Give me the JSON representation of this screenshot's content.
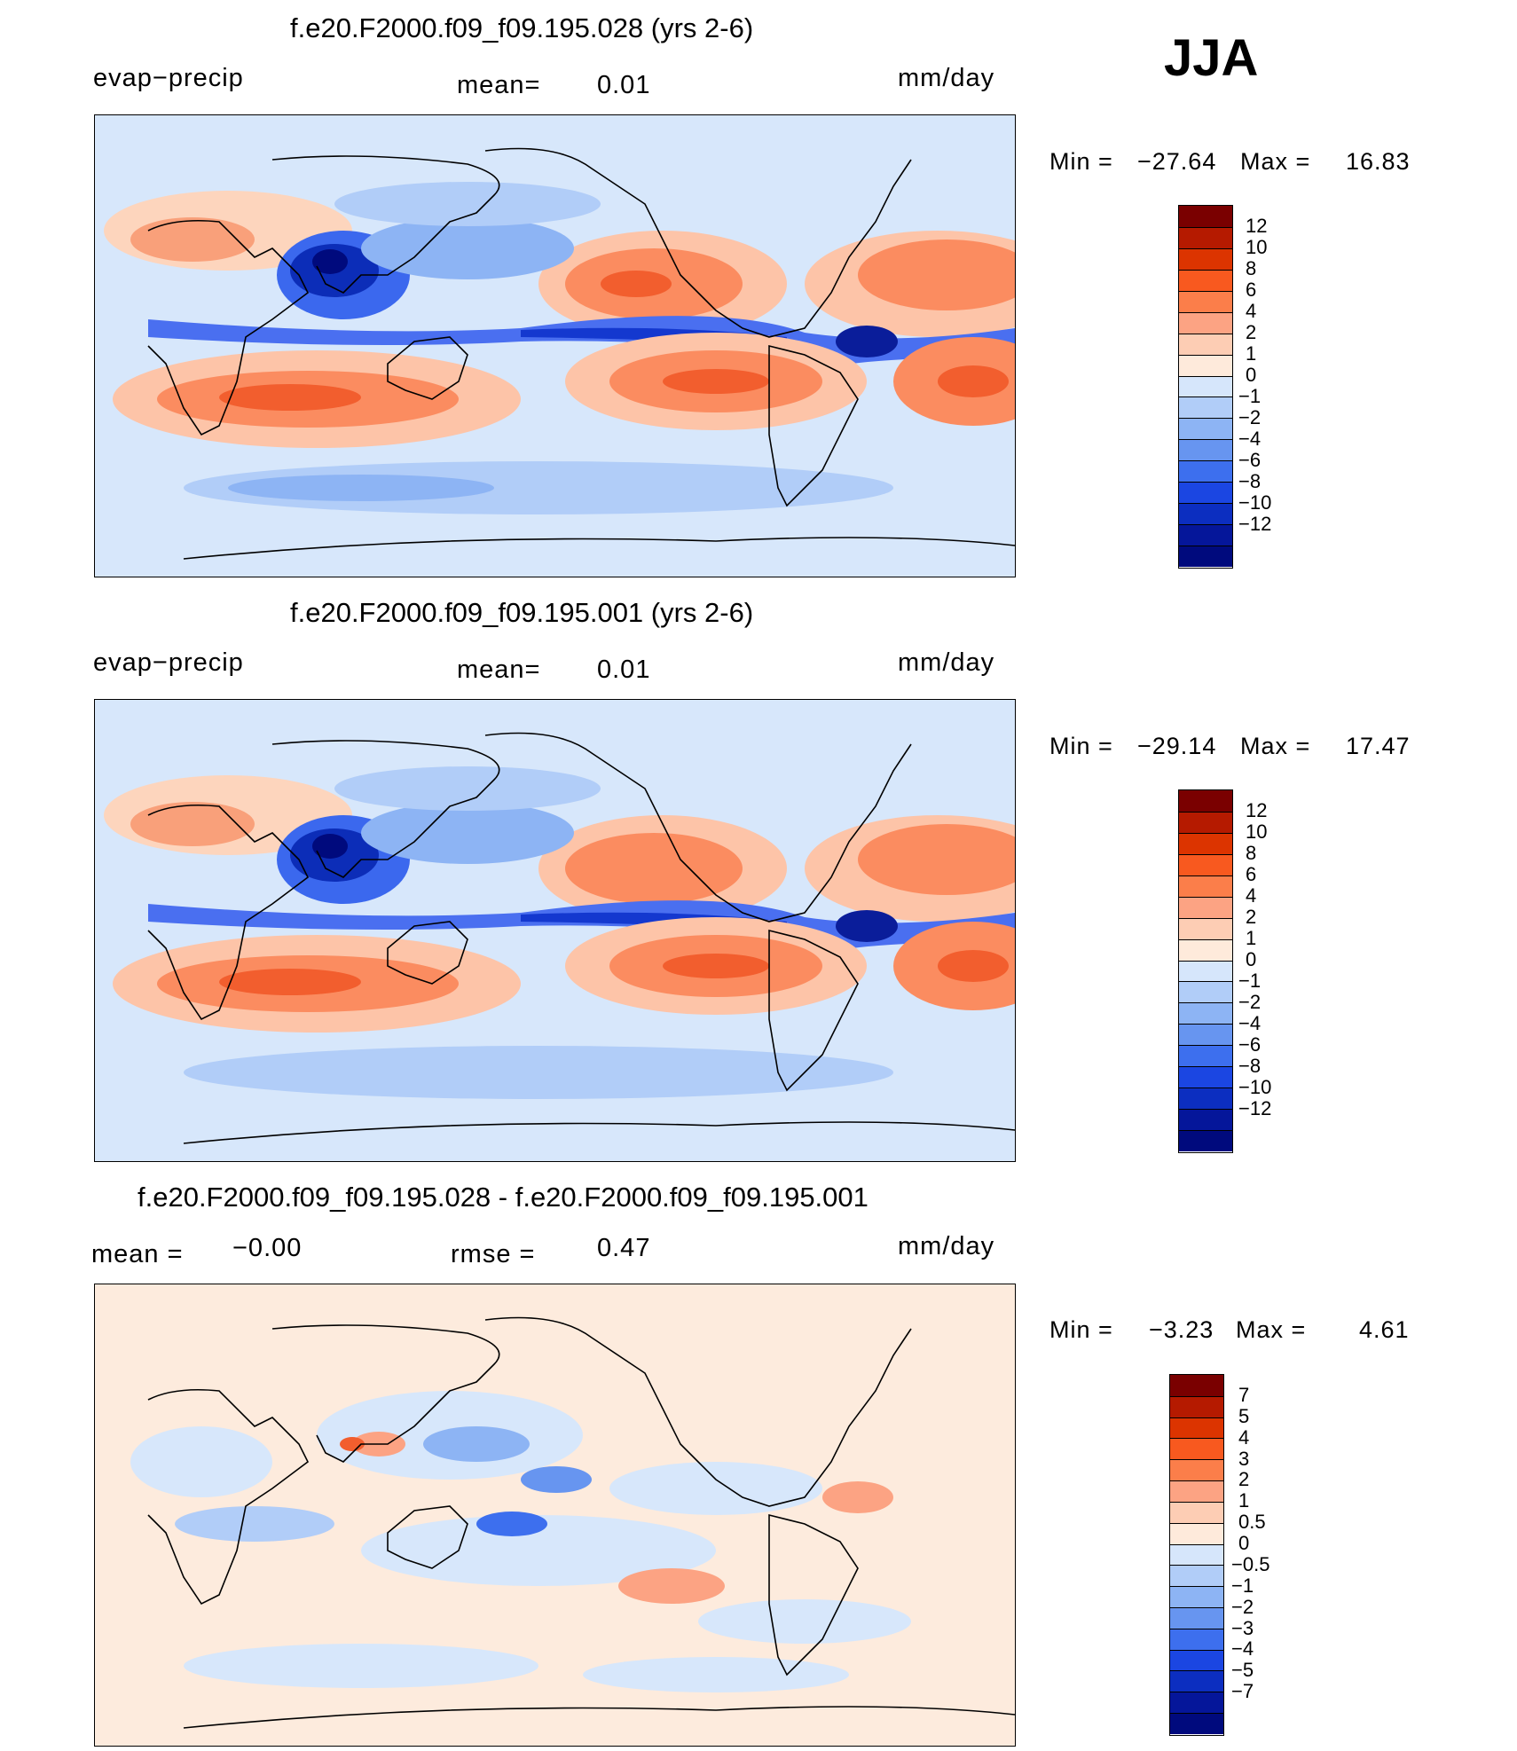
{
  "season": "JJA",
  "units": "mm/day",
  "panels": [
    {
      "id": "case1",
      "title": "f.e20.F2000.f09_f09.195.028 (yrs 2-6)",
      "left_text": "evap−precip",
      "center_label": "mean=",
      "center_value": "0.01",
      "right_text": "mm/day",
      "min_label": "Min =",
      "min_value": "−27.64",
      "max_label": "Max =",
      "max_value": "16.83",
      "colorbar": {
        "colors": [
          "#7a0000",
          "#b51a00",
          "#dc3400",
          "#f8591f",
          "#fb7e4a",
          "#fca383",
          "#fdcdb4",
          "#feeadb",
          "#d6e6fb",
          "#b1cdf8",
          "#8db4f4",
          "#6795f0",
          "#3d6fee",
          "#1b46e2",
          "#0c2ec0",
          "#05169a",
          "#000a7d"
        ],
        "labels": [
          "12",
          "10",
          "8",
          "6",
          "4",
          "2",
          "1",
          "0",
          "−1",
          "−2",
          "−4",
          "−6",
          "−8",
          "−10",
          "−12"
        ]
      }
    },
    {
      "id": "case2",
      "title": "f.e20.F2000.f09_f09.195.001 (yrs 2-6)",
      "left_text": "evap−precip",
      "center_label": "mean=",
      "center_value": "0.01",
      "right_text": "mm/day",
      "min_label": "Min =",
      "min_value": "−29.14",
      "max_label": "Max =",
      "max_value": "17.47",
      "colorbar": {
        "colors": [
          "#7a0000",
          "#b51a00",
          "#dc3400",
          "#f8591f",
          "#fb7e4a",
          "#fca383",
          "#fdcdb4",
          "#feeadb",
          "#d6e6fb",
          "#b1cdf8",
          "#8db4f4",
          "#6795f0",
          "#3d6fee",
          "#1b46e2",
          "#0c2ec0",
          "#05169a",
          "#000a7d"
        ],
        "labels": [
          "12",
          "10",
          "8",
          "6",
          "4",
          "2",
          "1",
          "0",
          "−1",
          "−2",
          "−4",
          "−6",
          "−8",
          "−10",
          "−12"
        ]
      }
    },
    {
      "id": "diff",
      "title": "f.e20.F2000.f09_f09.195.028 - f.e20.F2000.f09_f09.195.001",
      "left_label": "mean =",
      "left_value": "−0.00",
      "center_label": "rmse =",
      "center_value": "0.47",
      "right_text": "mm/day",
      "min_label": "Min =",
      "min_value": "−3.23",
      "max_label": "Max =",
      "max_value": "4.61",
      "colorbar": {
        "colors": [
          "#7a0000",
          "#b51a00",
          "#dc3400",
          "#f8591f",
          "#fb7e4a",
          "#fca383",
          "#fdcdb4",
          "#feeadb",
          "#d6e6fb",
          "#b1cdf8",
          "#8db4f4",
          "#6795f0",
          "#3d6fee",
          "#1b46e2",
          "#0c2ec0",
          "#05169a",
          "#000a7d"
        ],
        "labels": [
          "7",
          "5",
          "4",
          "3",
          "2",
          "1",
          "0.5",
          "0",
          "−0.5",
          "−1",
          "−2",
          "−3",
          "−4",
          "−5",
          "−7"
        ]
      }
    }
  ]
}
